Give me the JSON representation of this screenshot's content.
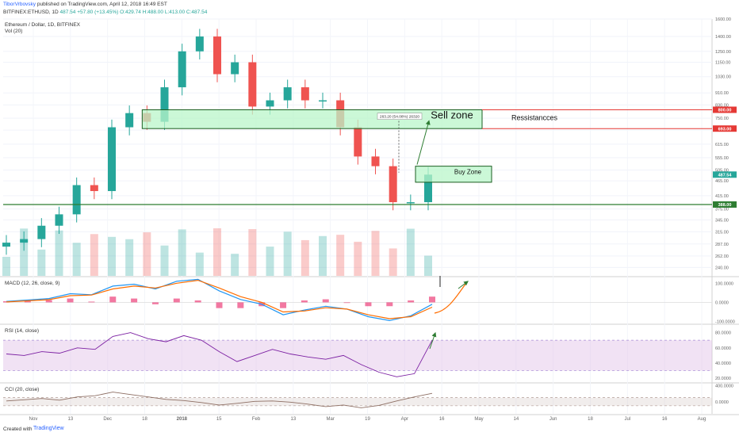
{
  "header": {
    "author": "TiborVrbovsky",
    "published": "published on TradingView.com, April 12, 2018 16:49 EST",
    "symbol": "BITFINEX:ETHUSD, 1D",
    "price": "487.54",
    "change": "+57.80 (+13.45%)",
    "ohlc": "O:429.74 H:488.00 L:413.00 C:487.54"
  },
  "footer": {
    "created_with": "Created with",
    "brand": "TradingView"
  },
  "colors": {
    "up": "#26a69a",
    "down": "#ef5350",
    "zone_fill": "#b9f6ca",
    "zone_stroke": "#1b5e20",
    "macd": "#2196f3",
    "signal": "#ff6d00",
    "rsi": "#7b1fa2",
    "rsi_band": "#e1bee7",
    "cci": "#8d6e63",
    "resistance": "#e53935",
    "support": "#2e7d32",
    "arrow": "#2e7d32"
  },
  "chart_data": [
    {
      "type": "candlestick",
      "title": "Ethereum / Dollar, 1D, BITFINEX",
      "indicator_label": "Vol (20)",
      "y_scale": "log",
      "ylim": [
        225,
        1600
      ],
      "y_ticks": [
        "1600.00",
        "1400.00",
        "1250.00",
        "1150.00",
        "1030.00",
        "910.00",
        "830.00",
        "750.00",
        "685.00",
        "615.00",
        "555.00",
        "505.00",
        "465.00",
        "415.00",
        "375.00",
        "345.00",
        "315.00",
        "287.00",
        "262.00",
        "240.00"
      ],
      "x_ticks": [
        "Nov",
        "13",
        "Dec",
        "18",
        "2018",
        "15",
        "Feb",
        "13",
        "Mar",
        "19",
        "Apr",
        "16",
        "May",
        "14",
        "Jun",
        "18",
        "Jul",
        "16",
        "Aug"
      ],
      "series": [
        {
          "label": "Nov 01",
          "close": 290
        },
        {
          "label": "Nov 08",
          "close": 298
        },
        {
          "label": "Nov 15",
          "close": 330
        },
        {
          "label": "Nov 22",
          "close": 360
        },
        {
          "label": "Nov 29",
          "close": 450
        },
        {
          "label": "Dec 06",
          "close": 430
        },
        {
          "label": "Dec 13",
          "close": 700
        },
        {
          "label": "Dec 20",
          "close": 780
        },
        {
          "label": "Dec 27",
          "close": 730
        },
        {
          "label": "Jan 03",
          "close": 950
        },
        {
          "label": "Jan 10",
          "close": 1250
        },
        {
          "label": "Jan 13",
          "close": 1400
        },
        {
          "label": "Jan 20",
          "close": 1050
        },
        {
          "label": "Jan 27",
          "close": 1150
        },
        {
          "label": "Feb 03",
          "close": 820
        },
        {
          "label": "Feb 10",
          "close": 860
        },
        {
          "label": "Feb 17",
          "close": 950
        },
        {
          "label": "Feb 24",
          "close": 860
        },
        {
          "label": "Mar 03",
          "close": 860
        },
        {
          "label": "Mar 10",
          "close": 700
        },
        {
          "label": "Mar 17",
          "close": 560
        },
        {
          "label": "Mar 24",
          "close": 520
        },
        {
          "label": "Mar 31",
          "close": 395
        },
        {
          "label": "Apr 07",
          "close": 395
        },
        {
          "label": "Apr 12",
          "close": 487.54
        }
      ],
      "price_labels": [
        {
          "text": "800.00",
          "value": 800,
          "kind": "resistance"
        },
        {
          "text": "693.00",
          "value": 693,
          "kind": "resistance"
        },
        {
          "text": "487.54",
          "value": 487.54,
          "kind": "last"
        },
        {
          "text": "388.00",
          "value": 388,
          "kind": "support"
        }
      ],
      "annotations": {
        "sell_zone": "Sell zone",
        "buy_zone": "Buy Zone",
        "resistances": "Ressistancces",
        "measure": "263.20 (54.08%) 26320"
      }
    },
    {
      "type": "line",
      "title": "MACD (12, 26, close, 9)",
      "y_ticks": [
        "100.0000",
        "0.0000",
        "-100.0000"
      ],
      "ylim": [
        -110,
        130
      ],
      "series": [
        {
          "name": "MACD",
          "values": [
            5,
            12,
            20,
            45,
            40,
            85,
            95,
            70,
            110,
            120,
            60,
            15,
            -10,
            -65,
            -40,
            -20,
            -35,
            -75,
            -95,
            -70,
            -10
          ]
        },
        {
          "name": "Signal",
          "values": [
            2,
            8,
            14,
            35,
            38,
            70,
            85,
            75,
            100,
            115,
            75,
            30,
            0,
            -50,
            -45,
            -28,
            -35,
            -65,
            -85,
            -75,
            -25
          ]
        }
      ]
    },
    {
      "type": "line",
      "title": "RSI (14, close)",
      "y_ticks": [
        "80.0000",
        "60.0000",
        "40.0000",
        "20.0000"
      ],
      "ylim": [
        15,
        90
      ],
      "series": [
        {
          "name": "RSI",
          "values": [
            52,
            50,
            55,
            53,
            60,
            58,
            75,
            80,
            72,
            68,
            76,
            70,
            55,
            42,
            50,
            58,
            52,
            48,
            45,
            50,
            38,
            28,
            22,
            26,
            70
          ]
        }
      ]
    },
    {
      "type": "line",
      "title": "CCI (20, close)",
      "y_ticks": [
        "400.0000",
        "0.0000"
      ],
      "ylim": [
        -300,
        450
      ],
      "series": [
        {
          "name": "CCI",
          "values": [
            20,
            50,
            80,
            40,
            120,
            150,
            240,
            180,
            120,
            60,
            30,
            -20,
            -80,
            -40,
            10,
            20,
            -10,
            -60,
            -120,
            -80,
            -150,
            -90,
            20,
            120,
            210
          ]
        }
      ]
    }
  ]
}
